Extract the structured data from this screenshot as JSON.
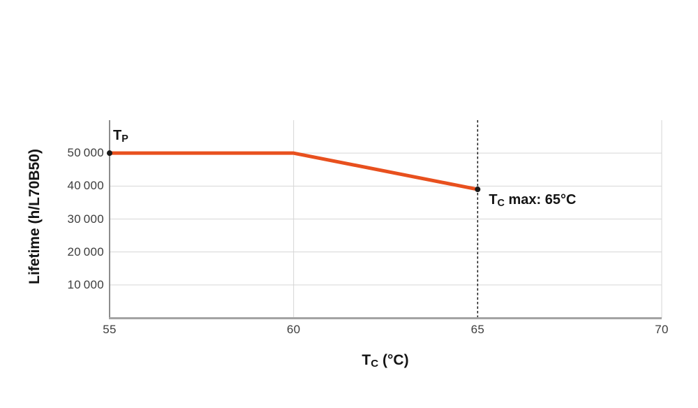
{
  "chart_data": {
    "type": "line",
    "title": "",
    "ylabel": "Lifetime (h/L70B50)",
    "xlabel": {
      "main": "T",
      "sub": "C",
      "suffix": " (°C)"
    },
    "xlim": [
      55,
      70
    ],
    "ylim": [
      0,
      60000
    ],
    "x_ticks": [
      {
        "value": 55,
        "label": "55"
      },
      {
        "value": 60,
        "label": "60"
      },
      {
        "value": 65,
        "label": "65"
      },
      {
        "value": 70,
        "label": "70"
      }
    ],
    "y_ticks": [
      {
        "value": 10000,
        "label": "10 000"
      },
      {
        "value": 20000,
        "label": "20 000"
      },
      {
        "value": 30000,
        "label": "30 000"
      },
      {
        "value": 40000,
        "label": "40 000"
      },
      {
        "value": 50000,
        "label": "50 000"
      }
    ],
    "vertical_gridlines_x": [
      60,
      70
    ],
    "series": [
      {
        "name": "lifetime-vs-case-temperature",
        "color": "#e8501e",
        "line_width": 5,
        "points": [
          [
            55,
            50000
          ],
          [
            60,
            50000
          ],
          [
            65,
            39000
          ]
        ],
        "markers": {
          "color": "#1a1a1a",
          "radius": 4,
          "points": [
            [
              55,
              50000
            ],
            [
              65,
              39000
            ]
          ]
        }
      }
    ],
    "reference_line": {
      "x": 65,
      "color": "#1a1a1a",
      "width": 1.5,
      "dash": [
        3.5,
        3
      ]
    },
    "annotations": {
      "tp": {
        "main": "T",
        "sub": "P",
        "suffix": "",
        "anchor": {
          "x": 55,
          "y": 50000
        }
      },
      "tc_max": {
        "main": "T",
        "sub": "C",
        "suffix": " max: 65°C",
        "anchor": {
          "x": 65,
          "y": 39000
        }
      }
    },
    "grid": {
      "horizontal": true
    },
    "legend": null,
    "colors": {
      "line": "#e8501e",
      "grid": "#d6d6d6",
      "y_axis": "#8c8c8c",
      "x_axis": "#a3a3a3",
      "tick_text": "#3d3d3d",
      "title_text": "#141414",
      "marker": "#1a1a1a",
      "background": "#ffffff"
    }
  }
}
